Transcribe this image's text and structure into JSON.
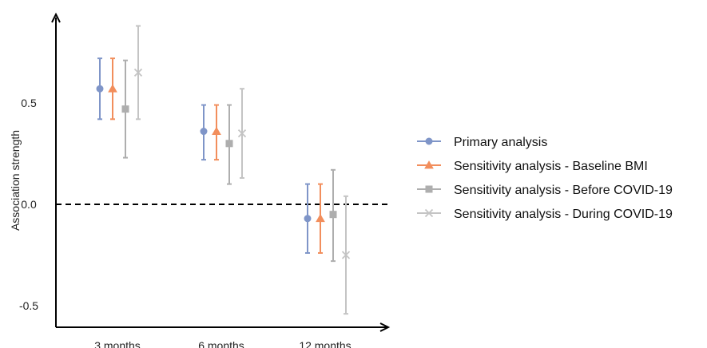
{
  "chart_data": {
    "type": "scatter",
    "ylabel": "Association strength",
    "xlabel": "",
    "categories": [
      "3 months",
      "6 months",
      "12 months"
    ],
    "yticks": [
      "0.5",
      "0.0",
      "-0.5"
    ],
    "ylim": [
      -0.61,
      0.93
    ],
    "reference_line": 0.0,
    "legend_position": "right",
    "grid": false,
    "series": [
      {
        "name": "Primary analysis",
        "color": "#7F95C8",
        "marker": "circle",
        "points": [
          {
            "x": "3 months",
            "y": 0.57,
            "lo": 0.42,
            "hi": 0.72
          },
          {
            "x": "6 months",
            "y": 0.36,
            "lo": 0.22,
            "hi": 0.49
          },
          {
            "x": "12 months",
            "y": -0.07,
            "lo": -0.24,
            "hi": 0.1
          }
        ]
      },
      {
        "name": "Sensitivity analysis - Baseline BMI",
        "color": "#F28E5C",
        "marker": "triangle",
        "points": [
          {
            "x": "3 months",
            "y": 0.57,
            "lo": 0.42,
            "hi": 0.72
          },
          {
            "x": "6 months",
            "y": 0.36,
            "lo": 0.22,
            "hi": 0.49
          },
          {
            "x": "12 months",
            "y": -0.07,
            "lo": -0.24,
            "hi": 0.1
          }
        ]
      },
      {
        "name": "Sensitivity analysis - Before COVID-19",
        "color": "#AEAEAE",
        "marker": "square",
        "points": [
          {
            "x": "3 months",
            "y": 0.47,
            "lo": 0.23,
            "hi": 0.71
          },
          {
            "x": "6 months",
            "y": 0.3,
            "lo": 0.1,
            "hi": 0.49
          },
          {
            "x": "12 months",
            "y": -0.05,
            "lo": -0.28,
            "hi": 0.17
          }
        ]
      },
      {
        "name": "Sensitivity analysis - During COVID-19",
        "color": "#C4C4C4",
        "marker": "x",
        "points": [
          {
            "x": "3 months",
            "y": 0.65,
            "lo": 0.42,
            "hi": 0.88
          },
          {
            "x": "6 months",
            "y": 0.35,
            "lo": 0.13,
            "hi": 0.57
          },
          {
            "x": "12 months",
            "y": -0.25,
            "lo": -0.54,
            "hi": 0.04
          }
        ]
      }
    ]
  }
}
